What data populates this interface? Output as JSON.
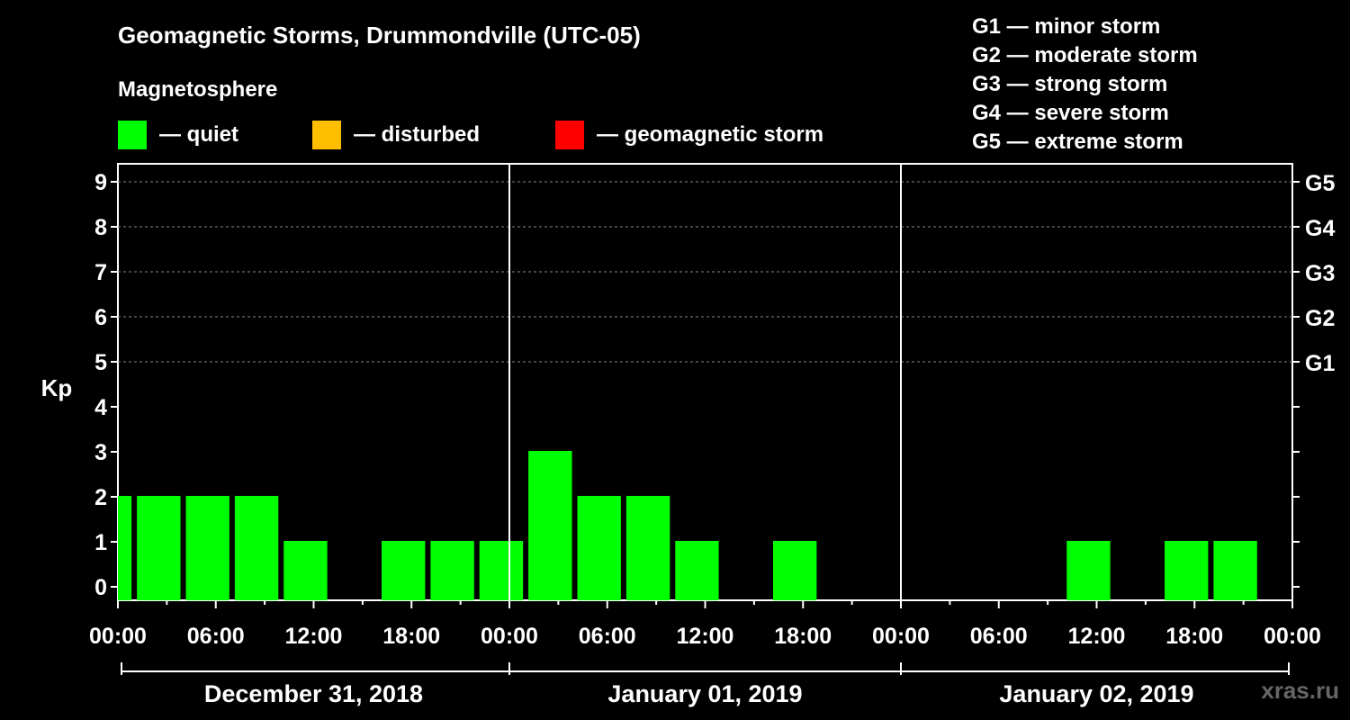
{
  "title": "Geomagnetic Storms, Drummondville (UTC-05)",
  "magnetosphere": {
    "title": "Magnetosphere",
    "items": [
      {
        "label": "— quiet",
        "color": "#00ff00"
      },
      {
        "label": "— disturbed",
        "color": "#ffbf00"
      },
      {
        "label": "— geomagnetic storm",
        "color": "#ff0000"
      }
    ]
  },
  "g_scale": [
    "G1 — minor storm",
    "G2 — moderate storm",
    "G3 — strong storm",
    "G4 — severe storm",
    "G5 — extreme storm"
  ],
  "watermark": "xras.ru",
  "chart_data": {
    "type": "bar",
    "ylabel": "Kp",
    "ylim": [
      0,
      9
    ],
    "y_ticks": [
      "0",
      "1",
      "2",
      "3",
      "4",
      "5",
      "6",
      "7",
      "8",
      "9"
    ],
    "right_axis_labels": [
      {
        "kp": 5,
        "label": "G1"
      },
      {
        "kp": 6,
        "label": "G2"
      },
      {
        "kp": 7,
        "label": "G3"
      },
      {
        "kp": 8,
        "label": "G4"
      },
      {
        "kp": 9,
        "label": "G5"
      }
    ],
    "x_tick_labels": [
      "00:00",
      "06:00",
      "12:00",
      "18:00",
      "00:00",
      "06:00",
      "12:00",
      "18:00",
      "00:00",
      "06:00",
      "12:00",
      "18:00",
      "00:00"
    ],
    "days": [
      "December 31, 2018",
      "January 01, 2019",
      "January 02, 2019"
    ],
    "grid": "dashed horizontal lines at Kp 5–9",
    "bar_color": "#00ff00",
    "bars": [
      {
        "start": "Dec 31 00:00",
        "end": "Dec 31 01:00",
        "kp": 2
      },
      {
        "start": "Dec 31 01:00",
        "end": "Dec 31 04:00",
        "kp": 2
      },
      {
        "start": "Dec 31 04:00",
        "end": "Dec 31 07:00",
        "kp": 2
      },
      {
        "start": "Dec 31 07:00",
        "end": "Dec 31 10:00",
        "kp": 2
      },
      {
        "start": "Dec 31 10:00",
        "end": "Dec 31 13:00",
        "kp": 1
      },
      {
        "start": "Dec 31 16:00",
        "end": "Dec 31 19:00",
        "kp": 1
      },
      {
        "start": "Dec 31 19:00",
        "end": "Dec 31 22:00",
        "kp": 1
      },
      {
        "start": "Dec 31 22:00",
        "end": "Jan 01 01:00",
        "kp": 1
      },
      {
        "start": "Jan 01 01:00",
        "end": "Jan 01 04:00",
        "kp": 3
      },
      {
        "start": "Jan 01 04:00",
        "end": "Jan 01 07:00",
        "kp": 2
      },
      {
        "start": "Jan 01 07:00",
        "end": "Jan 01 10:00",
        "kp": 2
      },
      {
        "start": "Jan 01 10:00",
        "end": "Jan 01 13:00",
        "kp": 1
      },
      {
        "start": "Jan 01 16:00",
        "end": "Jan 01 19:00",
        "kp": 1
      },
      {
        "start": "Jan 02 10:00",
        "end": "Jan 02 13:00",
        "kp": 1
      },
      {
        "start": "Jan 02 16:00",
        "end": "Jan 02 19:00",
        "kp": 1
      },
      {
        "start": "Jan 02 19:00",
        "end": "Jan 02 22:00",
        "kp": 1
      }
    ]
  }
}
